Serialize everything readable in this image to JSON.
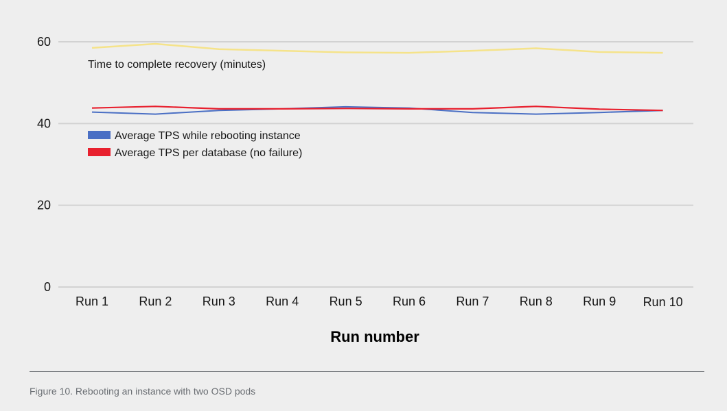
{
  "caption": "Figure 10. Rebooting an instance with two OSD pods",
  "chart_data": {
    "type": "line",
    "title": "",
    "xlabel": "Run number",
    "ylabel": "",
    "categories": [
      "Run 1",
      "Run 2",
      "Run 3",
      "Run 4",
      "Run 5",
      "Run 6",
      "Run 7",
      "Run 8",
      "Run 9",
      "Run 10"
    ],
    "ylim": [
      0,
      60
    ],
    "yticks": [
      0,
      20,
      40,
      60
    ],
    "grid": true,
    "legend_position": "left",
    "series": [
      {
        "name": "Time to complete recovery (minutes)",
        "color": "#f5e38a",
        "values": [
          58.5,
          59.5,
          58.2,
          57.8,
          57.4,
          57.3,
          57.8,
          58.4,
          57.5,
          57.3
        ]
      },
      {
        "name": "Average TPS while rebooting instance",
        "color": "#4a6fc4",
        "values": [
          42.8,
          42.3,
          43.2,
          43.6,
          44.1,
          43.8,
          42.7,
          42.3,
          42.7,
          43.2
        ]
      },
      {
        "name": "Average TPS per database (no failure)",
        "color": "#e8202e",
        "values": [
          43.8,
          44.2,
          43.6,
          43.6,
          43.7,
          43.6,
          43.6,
          44.2,
          43.5,
          43.2
        ]
      }
    ]
  }
}
